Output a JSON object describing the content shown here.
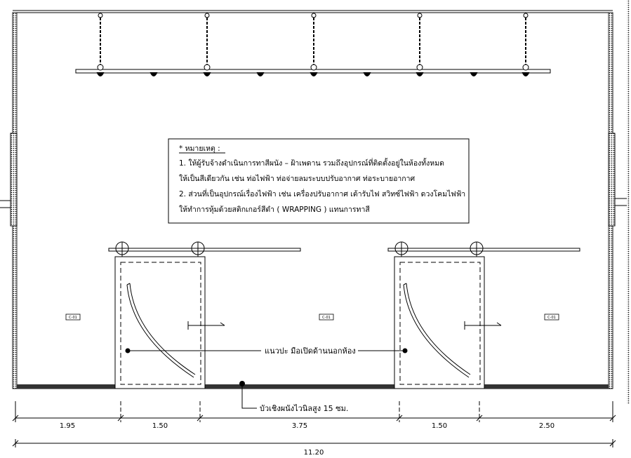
{
  "note": {
    "heading": "* หมายเหตุ :",
    "lines": [
      "1. ให้ผู้รับจ้างดำเนินการทาสีผนัง – ฝ้าเพดาน รวมถึงอุปกรณ์ที่ติดตั้งอยู่ในห้องทั้งหมด",
      "    ให้เป็นสีเดียวกัน เช่น ท่อไฟฟ้า ท่อจ่ายลมระบบปรับอากาศ ท่อระบายอากาศ",
      "2. ส่วนที่เป็นอุปกรณ์เรื่องไฟฟ้า เช่น เครื่องปรับอากาศ เต้ารับไฟ สวิทซ์ไฟฟ้า ดวงโคมไฟฟ้า",
      "    ให้ทำการหุ้มด้วยสติกเกอร์สีดำ ( WRAPPING ) แทนการทาสี"
    ]
  },
  "labels": {
    "door_callout": "แนวปะ มือเปิดด้านนอกห้อง",
    "baseboard_callout": "บัวเชิงผนังไวนิลสูง 15 ซม."
  },
  "wall_tags": [
    "C-01",
    "C-01",
    "C-01"
  ],
  "dimensions": {
    "segments": [
      "1.95",
      "1.50",
      "3.75",
      "1.50",
      "2.50"
    ],
    "total": "11.20"
  }
}
